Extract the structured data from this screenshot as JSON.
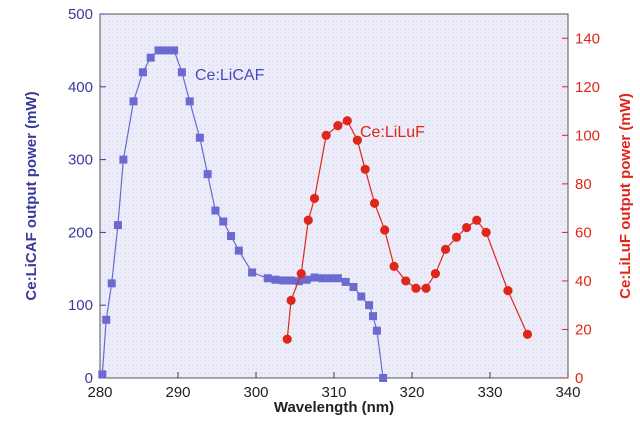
{
  "chart_data": {
    "type": "line",
    "xlabel": "Wavelength (nm)",
    "ylabel_left": "Ce:LiCAF output power (mW)",
    "ylabel_right": "Ce:LiLuF output power (mW)",
    "xlim": [
      280,
      340
    ],
    "ylim_left": [
      0,
      500
    ],
    "ylim_right": [
      0,
      150
    ],
    "xticks": [
      "280",
      "290",
      "300",
      "310",
      "320",
      "330",
      "340"
    ],
    "yticks_left": [
      "0",
      "100",
      "200",
      "300",
      "400",
      "500"
    ],
    "yticks_right": [
      "0",
      "20",
      "40",
      "60",
      "80",
      "100",
      "120",
      "140"
    ],
    "grid": false,
    "series": [
      {
        "name": "Ce:LiCAF",
        "axis": "left",
        "marker": "square",
        "color": "#6a6ad0",
        "x": [
          280.3,
          280.8,
          281.5,
          282.3,
          283.0,
          284.3,
          285.5,
          286.5,
          287.5,
          288.5,
          289.5,
          290.5,
          291.5,
          292.8,
          293.8,
          294.8,
          295.8,
          296.8,
          297.8,
          299.5,
          301.5,
          302.5,
          303.5,
          304.5,
          305.5,
          306.5,
          307.5,
          308.5,
          309.5,
          310.5,
          311.5,
          312.5,
          313.5,
          314.5,
          315.0,
          315.5,
          316.3
        ],
        "y": [
          5,
          80,
          130,
          210,
          300,
          380,
          420,
          440,
          450,
          450,
          450,
          420,
          380,
          330,
          280,
          230,
          215,
          195,
          175,
          145,
          137,
          135,
          134,
          134,
          133,
          135,
          138,
          137,
          137,
          137,
          132,
          125,
          112,
          100,
          85,
          65,
          0
        ]
      },
      {
        "name": "Ce:LiLuF",
        "axis": "right",
        "marker": "circle",
        "color": "#e0261b",
        "x": [
          304.0,
          304.5,
          305.8,
          306.7,
          307.5,
          309.0,
          310.5,
          311.7,
          313.0,
          314.0,
          315.2,
          316.5,
          317.7,
          319.2,
          320.5,
          321.8,
          323.0,
          324.3,
          325.7,
          327.0,
          328.3,
          329.5,
          332.3,
          334.8
        ],
        "y": [
          16,
          32,
          43,
          65,
          74,
          100,
          104,
          106,
          98,
          86,
          72,
          61,
          46,
          40,
          37,
          37,
          43,
          53,
          58,
          62,
          65,
          60,
          36,
          18
        ]
      }
    ],
    "annotations": [
      {
        "text": "Ce:LiCAF",
        "series": "Ce:LiCAF"
      },
      {
        "text": "Ce:LiLuF",
        "series": "Ce:LiLuF"
      }
    ]
  }
}
